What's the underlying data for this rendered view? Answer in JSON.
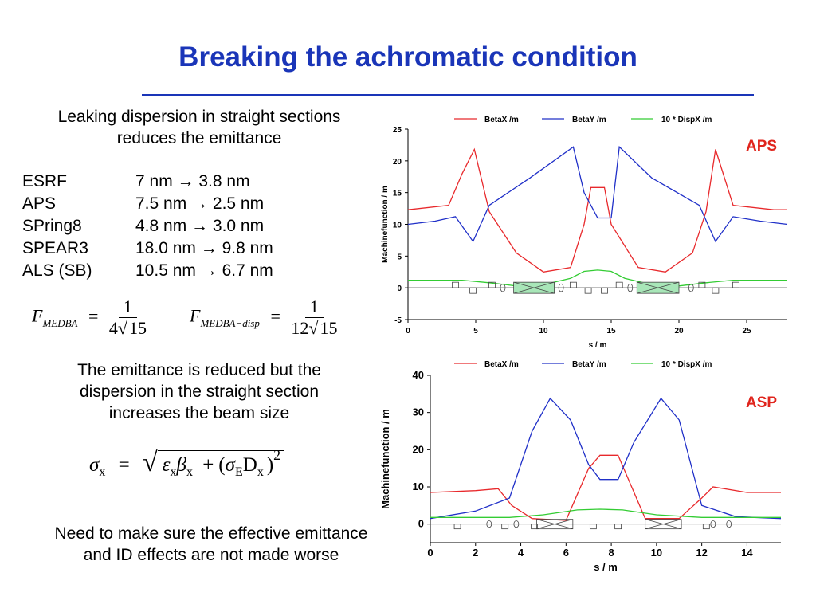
{
  "slide": {
    "title": "Breaking the achromatic condition",
    "intro_line1": "Leaking dispersion in straight sections",
    "intro_line2": "reduces the emittance",
    "rings": [
      {
        "name": "ESRF",
        "from": "7 nm",
        "to": "3.8 nm"
      },
      {
        "name": "APS",
        "from": "7.5 nm",
        "to": "2.5 nm"
      },
      {
        "name": "SPring8",
        "from": "4.8 nm",
        "to": "3.0 nm"
      },
      {
        "name": "SPEAR3",
        "from": "18.0 nm",
        "to": "9.8 nm"
      },
      {
        "name": "ALS (SB)",
        "from": "10.5 nm",
        "to": "6.7 nm"
      }
    ],
    "arrow_symbol": "→",
    "formula1": {
      "lhs": "F",
      "sub": "MEDBA",
      "eq": "=",
      "num": "1",
      "coef": "4",
      "root": "15"
    },
    "formula2": {
      "lhs": "F",
      "sub": "MEDBA−disp",
      "eq": "=",
      "num": "1",
      "coef": "12",
      "root": "15"
    },
    "msg2_line1": "The emittance is reduced but the",
    "msg2_line2": "dispersion in the straight section",
    "msg2_line3": "increases the beam size",
    "sigma": {
      "sigma": "σ",
      "x": "x",
      "eps": "ε",
      "beta": "β",
      "E": "E",
      "D": "D",
      "sq": "2",
      "eq": "=",
      "plus": "+",
      "lp": "(",
      "rp": ")"
    },
    "msg3_line1": "Need to make sure the effective emittance",
    "msg3_line2": "and ID effects are not made worse",
    "aps_tag": "APS",
    "asp_tag": "ASP"
  },
  "colors": {
    "title": "#1a35b8",
    "tag": "#e0251d",
    "betax": "#e8292c",
    "betay": "#2030c8",
    "disp": "#33cc33"
  },
  "chart_data": [
    {
      "type": "line",
      "ylabel": "Machinefunction / m",
      "xlabel": "s / m",
      "xlim": [
        0,
        28
      ],
      "ylim": [
        -5,
        25
      ],
      "xticks": [
        0,
        5,
        10,
        15,
        20,
        25
      ],
      "yticks": [
        -5,
        0,
        5,
        10,
        15,
        20,
        25
      ],
      "legend": [
        "BetaX /m",
        "BetaY /m",
        "10 * DispX /m"
      ],
      "legend_position": "top",
      "series": [
        {
          "name": "BetaX /m",
          "x": [
            0,
            3,
            4,
            4.9,
            6,
            8,
            10,
            12,
            13,
            13.5,
            14,
            14.5,
            15,
            17,
            19,
            21,
            22,
            22.7,
            24,
            27,
            28
          ],
          "y": [
            12.3,
            13,
            18,
            21.8,
            12,
            5.5,
            2.5,
            3.2,
            10,
            15.8,
            15.8,
            15.8,
            10,
            3.2,
            2.5,
            5.5,
            12,
            21.8,
            13,
            12.3,
            12.3
          ]
        },
        {
          "name": "BetaY /m",
          "x": [
            0,
            2,
            3.5,
            4.8,
            6,
            9,
            12.2,
            13,
            14,
            15,
            15.6,
            18,
            21.5,
            22.7,
            24,
            26,
            28
          ],
          "y": [
            10,
            10.5,
            11.2,
            7.3,
            13,
            17.3,
            22.2,
            15,
            11,
            11,
            22.2,
            17.3,
            13,
            7.3,
            11.2,
            10.5,
            10
          ]
        },
        {
          "name": "10 * DispX /m",
          "x": [
            0,
            4,
            6,
            8,
            10,
            12,
            13,
            14,
            15,
            16,
            18,
            20,
            22,
            24,
            28
          ],
          "y": [
            1.2,
            1.2,
            0.8,
            0.3,
            0.5,
            1.5,
            2.6,
            2.8,
            2.6,
            1.5,
            0.5,
            0.3,
            0.8,
            1.2,
            1.2
          ]
        }
      ],
      "grid": false
    },
    {
      "type": "line",
      "ylabel": "Machinefunction / m",
      "xlabel": "s / m",
      "xlim": [
        0,
        15.5
      ],
      "ylim": [
        -5,
        40
      ],
      "xticks": [
        0,
        2,
        4,
        6,
        8,
        10,
        12,
        14
      ],
      "yticks": [
        0,
        10,
        20,
        30,
        40
      ],
      "legend": [
        "BetaX /m",
        "BetaY /m",
        "10 * DispX /m"
      ],
      "legend_position": "top (partially cut off)",
      "series": [
        {
          "name": "BetaX /m",
          "x": [
            0,
            2,
            3,
            3.6,
            4.5,
            6,
            7,
            7.5,
            8.3,
            9.5,
            11,
            12,
            12.5,
            14,
            15.5
          ],
          "y": [
            8.5,
            9,
            9.5,
            5,
            1.5,
            1,
            15,
            18.5,
            18.5,
            1.5,
            1.5,
            7,
            10,
            8.5,
            8.5
          ]
        },
        {
          "name": "BetaY /m",
          "x": [
            0,
            2,
            3.5,
            4.5,
            5.3,
            6.2,
            7,
            7.5,
            8.3,
            9,
            10.2,
            11,
            12,
            13.5,
            15.5
          ],
          "y": [
            1.5,
            3.5,
            7,
            25,
            33.8,
            28,
            16,
            12,
            12,
            22,
            33.8,
            28,
            5,
            2,
            1.5
          ]
        },
        {
          "name": "10 * DispX /m",
          "x": [
            0,
            3.5,
            5,
            6.5,
            7.5,
            8.5,
            10,
            12,
            15.5
          ],
          "y": [
            1.8,
            1.8,
            2.5,
            3.8,
            4,
            3.8,
            2.5,
            1.8,
            1.8
          ]
        }
      ],
      "grid": false
    }
  ]
}
